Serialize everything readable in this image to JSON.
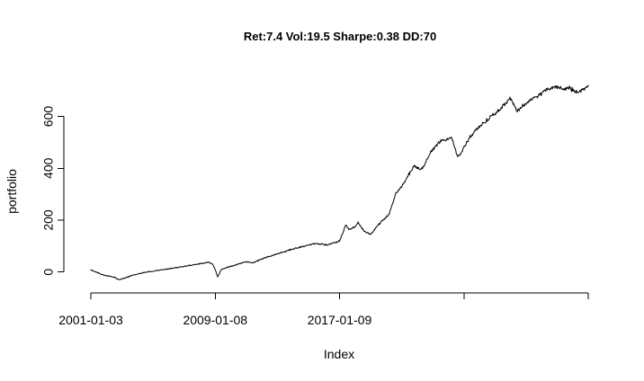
{
  "chart_data": {
    "type": "line",
    "title": "Ret:7.4 Vol:19.5 Sharpe:0.38 DD:70",
    "xlabel": "Index",
    "ylabel": "portfolio",
    "x_ticks": [
      {
        "value": 0,
        "label": "2001-01-03"
      },
      {
        "value": 2000,
        "label": "2009-01-08"
      },
      {
        "value": 4000,
        "label": "2017-01-09"
      },
      {
        "value": 6000,
        "label": ""
      },
      {
        "value": 8000,
        "label": ""
      }
    ],
    "y_ticks": [
      {
        "value": 0,
        "label": "0"
      },
      {
        "value": 200,
        "label": "200"
      },
      {
        "value": 400,
        "label": "400"
      },
      {
        "value": 600,
        "label": "600"
      }
    ],
    "xlim": [
      0,
      8000
    ],
    "ylim": [
      -46,
      730
    ],
    "grid": false,
    "colors": {
      "line": "#000000",
      "axis": "#000000",
      "background": "#ffffff"
    },
    "series": [
      {
        "x": [
          0,
          200,
          380,
          450,
          520,
          700,
          900,
          1200,
          1400,
          1700,
          1900,
          1960,
          2000,
          2040,
          2100,
          2200,
          2300,
          2500,
          2600,
          2800,
          3000,
          3200,
          3400,
          3600,
          3800,
          3950,
          4000,
          4050,
          4100,
          4150,
          4250,
          4300,
          4400,
          4500,
          4600,
          4700,
          4800,
          4900,
          5000,
          5100,
          5200,
          5300,
          5350,
          5400,
          5450,
          5500,
          5600,
          5700,
          5800,
          5900,
          5950,
          6000,
          6100,
          6200,
          6300,
          6400,
          6500,
          6600,
          6700,
          6750,
          6800,
          6850,
          6900,
          7000,
          7100,
          7200,
          7300,
          7400,
          7500,
          7600,
          7700,
          7800,
          7900,
          8000
        ],
        "y": [
          8,
          -12,
          -20,
          -30,
          -25,
          -10,
          0,
          10,
          18,
          30,
          38,
          30,
          10,
          -20,
          10,
          18,
          25,
          40,
          35,
          55,
          70,
          85,
          98,
          110,
          105,
          115,
          120,
          150,
          180,
          165,
          175,
          190,
          155,
          145,
          175,
          200,
          225,
          300,
          330,
          370,
          410,
          395,
          405,
          430,
          455,
          470,
          500,
          510,
          520,
          445,
          455,
          480,
          520,
          550,
          570,
          590,
          610,
          630,
          660,
          670,
          650,
          620,
          630,
          650,
          670,
          680,
          700,
          710,
          715,
          705,
          710,
          695,
          700,
          720
        ]
      }
    ]
  }
}
